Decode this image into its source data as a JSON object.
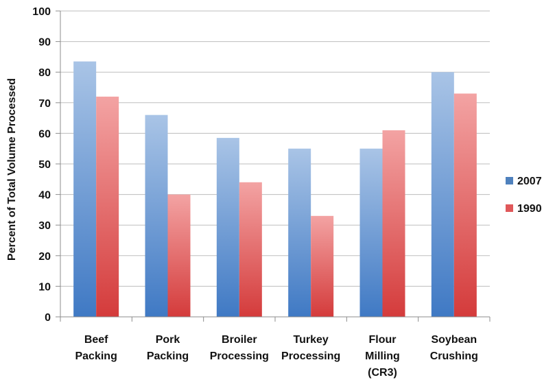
{
  "chart_data": {
    "type": "bar",
    "title": "",
    "xlabel": "",
    "ylabel": "Percent of Total Volume Processed",
    "ylim": [
      0,
      100
    ],
    "yticks": [
      0,
      10,
      20,
      30,
      40,
      50,
      60,
      70,
      80,
      90,
      100
    ],
    "grid": true,
    "legend_position": "right",
    "categories": [
      [
        "Beef",
        "Packing"
      ],
      [
        "Pork",
        "Packing"
      ],
      [
        "Broiler",
        "Processing"
      ],
      [
        "Turkey",
        "Processing"
      ],
      [
        "Flour",
        "Milling",
        "(CR3)"
      ],
      [
        "Soybean",
        "Crushing"
      ]
    ],
    "series": [
      {
        "name": "2007",
        "color_top": "#a9c4e6",
        "color_bottom": "#3f79c4",
        "legend_color": "#4f81bd",
        "values": [
          83.5,
          66,
          58.5,
          55,
          55,
          80
        ]
      },
      {
        "name": "1990",
        "color_top": "#f3a3a3",
        "color_bottom": "#d43b3b",
        "legend_color": "#e0585a",
        "values": [
          72,
          40,
          44,
          33,
          61,
          73
        ]
      }
    ]
  }
}
